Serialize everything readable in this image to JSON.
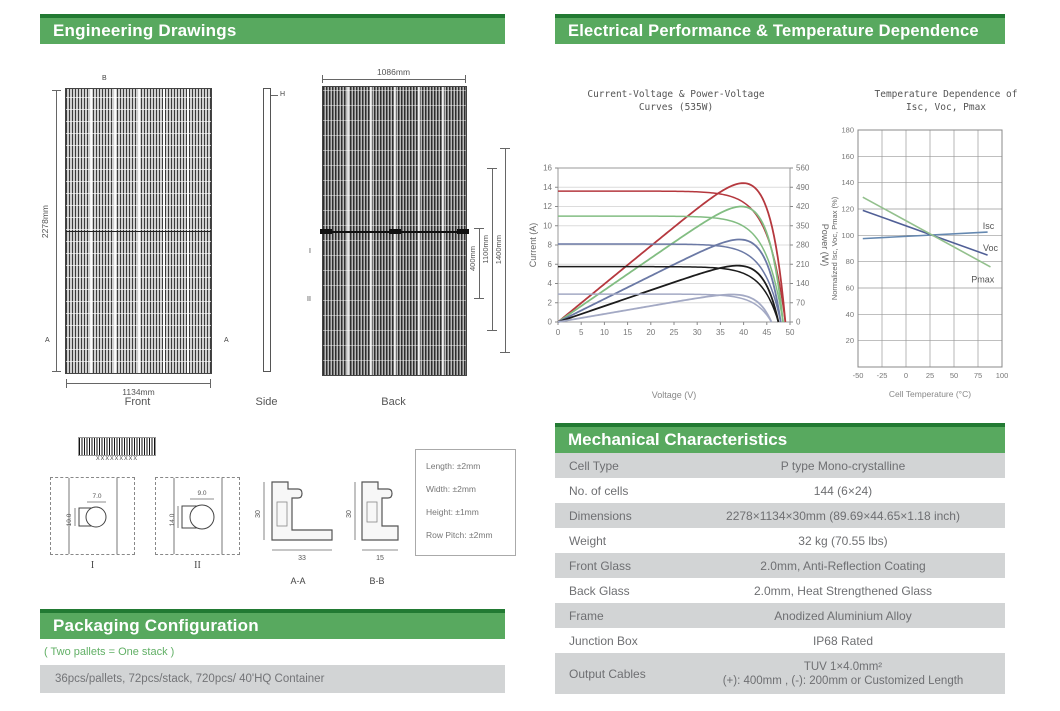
{
  "theme": {
    "banner_green": "#58a95f",
    "banner_dark_green": "#227a33",
    "row_gray": "#d2d4d5",
    "text_gray": "#6e6f72",
    "note_green": "#62b066"
  },
  "left": {
    "header": "Engineering Drawings",
    "drawings": {
      "front": {
        "label": "Front",
        "height_dim": "2278mm",
        "width_dim": "1134mm",
        "mark_b": "B",
        "mark_a_left": "A",
        "mark_a_right": "A"
      },
      "side": {
        "label": "Side",
        "thickness_mark": "H"
      },
      "back": {
        "label": "Back",
        "top_dim": "1086mm",
        "mount_dims": [
          "400mm",
          "1100mm",
          "1400mm"
        ],
        "mark_i": "I",
        "mark_ii": "II"
      },
      "details": {
        "barcode_text": "XXXXXXXXX",
        "section_i": {
          "label": "I",
          "dim_top": "7.0",
          "dim_side": "10.0"
        },
        "section_ii": {
          "label": "II",
          "dim_top": "9.0",
          "dim_side": "14.0"
        },
        "section_aa": {
          "label": "A-A",
          "dim_height": "30",
          "dim_width": "33"
        },
        "section_bb": {
          "label": "B-B",
          "dim_height": "30",
          "dim_width": "15"
        }
      },
      "tolerances": [
        "Length: ±2mm",
        "Width: ±2mm",
        "Height: ±1mm",
        "Row Pitch: ±2mm"
      ]
    },
    "packaging": {
      "header": "Packaging Configuration",
      "note": "( Two pallets = One stack )",
      "info": "36pcs/pallets, 72pcs/stack, 720pcs/ 40'HQ Container"
    }
  },
  "right": {
    "header": "Electrical Performance & Temperature Dependence",
    "mech": {
      "header": "Mechanical Characteristics",
      "rows": [
        {
          "label": "Cell Type",
          "value": "P type Mono-crystalline"
        },
        {
          "label": "No. of cells",
          "value": "144 (6×24)"
        },
        {
          "label": "Dimensions",
          "value": "2278×1134×30mm (89.69×44.65×1.18 inch)"
        },
        {
          "label": "Weight",
          "value": "32 kg (70.55 lbs)"
        },
        {
          "label": "Front Glass",
          "value": "2.0mm, Anti-Reflection Coating"
        },
        {
          "label": "Back Glass",
          "value": "2.0mm, Heat Strengthened Glass"
        },
        {
          "label": "Frame",
          "value": "Anodized Aluminium Alloy"
        },
        {
          "label": "Junction Box",
          "value": "IP68 Rated"
        },
        {
          "label": "Output Cables",
          "value": "TUV 1×4.0mm²",
          "value2": "(+): 400mm , (-): 200mm or Customized Length"
        }
      ]
    }
  },
  "chart_data": [
    {
      "type": "line",
      "name": "iv-pv-curves",
      "title_lines": [
        "Current-Voltage & Power-Voltage",
        "Curves (535W)"
      ],
      "xlabel": "Voltage (V)",
      "ylabel_left": "Current (A)",
      "ylabel_right": "Power (W)",
      "xlim": [
        0,
        50
      ],
      "xticks": [
        0,
        5,
        10,
        15,
        20,
        25,
        30,
        35,
        40,
        45,
        50
      ],
      "ylim_left": [
        0,
        16
      ],
      "yticks_left": [
        0,
        2,
        4,
        6,
        8,
        10,
        12,
        14,
        16
      ],
      "ylim_right": [
        0,
        560
      ],
      "yticks_right": [
        0,
        70,
        140,
        210,
        280,
        350,
        420,
        490,
        560
      ],
      "grid": "horizontal",
      "series": [
        {
          "name": "irradiance-level-1",
          "color": "#b5383e",
          "isc": 13.6,
          "voc": 49.0,
          "pmax_w": 505
        },
        {
          "name": "irradiance-level-2",
          "color": "#82bd82",
          "isc": 11.0,
          "voc": 48.5,
          "pmax_w": 420
        },
        {
          "name": "irradiance-level-3",
          "color": "#6b79a5",
          "isc": 8.1,
          "voc": 48.0,
          "pmax_w": 300
        },
        {
          "name": "irradiance-level-4",
          "color": "#1c1c1c",
          "isc": 5.75,
          "voc": 47.5,
          "pmax_w": 205
        },
        {
          "name": "irradiance-level-5",
          "color": "#a3a9c4",
          "isc": 2.9,
          "voc": 46.0,
          "pmax_w": 100
        }
      ]
    },
    {
      "type": "line",
      "name": "temperature-dependence",
      "title_lines": [
        "Temperature Dependence of",
        "Isc, Voc, Pmax"
      ],
      "xlabel": "Cell Temperature (°C)",
      "ylabel": "Normalized Isc, Voc, Pmax (%)",
      "xlim": [
        -50,
        100
      ],
      "xticks": [
        -50,
        -25,
        0,
        25,
        50,
        75,
        100
      ],
      "ylim": [
        0,
        180
      ],
      "yticks": [
        20,
        40,
        60,
        80,
        100,
        120,
        140,
        160,
        180
      ],
      "grid": "both",
      "series": [
        {
          "name": "Isc",
          "color": "#6588b0",
          "points": [
            [
              -45,
              97.5
            ],
            [
              85,
              102.5
            ]
          ],
          "label_pos": [
            86,
            105
          ]
        },
        {
          "name": "Voc",
          "color": "#505f96",
          "points": [
            [
              -45,
              119
            ],
            [
              85,
              85
            ]
          ],
          "label_pos": [
            88,
            88
          ]
        },
        {
          "name": "Pmax",
          "color": "#93c08d",
          "points": [
            [
              -45,
              129
            ],
            [
              88,
              76
            ]
          ],
          "label_pos": [
            80,
            64
          ]
        }
      ]
    }
  ]
}
